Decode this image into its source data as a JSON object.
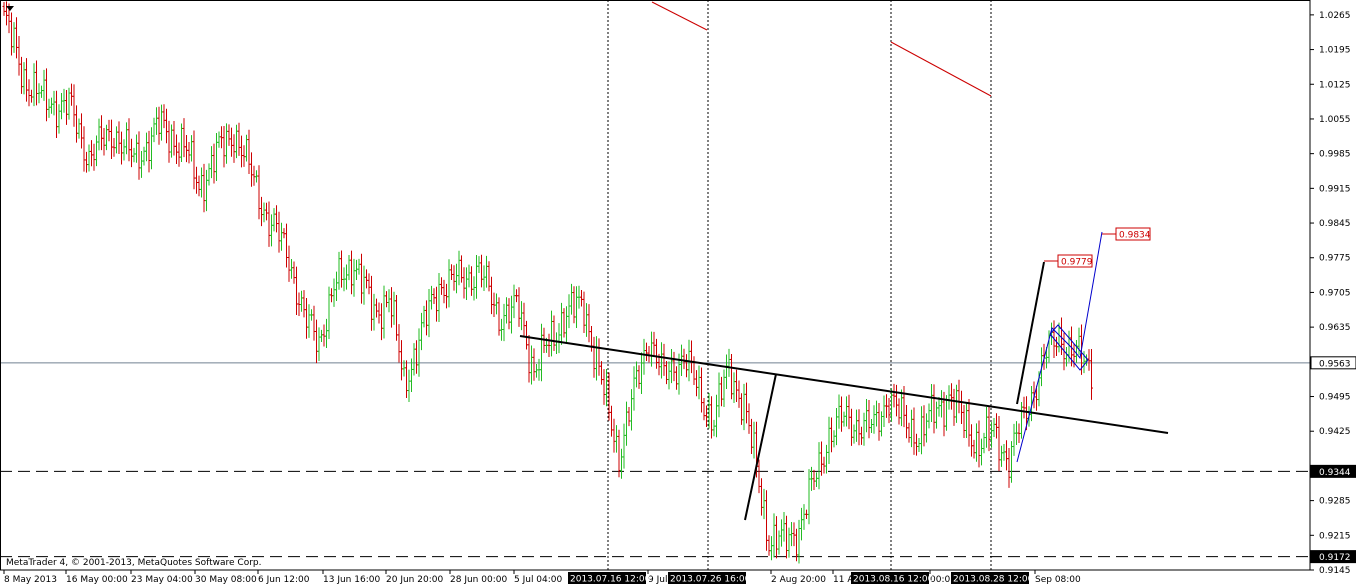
{
  "window": {
    "copyright": "MetaTrader 4, © 2001-2013, MetaQuotes Software Corp."
  },
  "chart_data": {
    "type": "bar",
    "symbol_style": "OHLC bars",
    "colors": {
      "bull": "#22bb22",
      "bear": "#cc0000",
      "trendline": "#000000",
      "forecast_black": "#000000",
      "forecast_blue": "#0000cc",
      "price_line": "#708090",
      "grid": "#000000",
      "label_red": "#cc0000"
    },
    "y_axis": {
      "range": [
        0.9145,
        1.0295
      ],
      "ticks": [
        "1.0265",
        "1.0195",
        "1.0125",
        "1.0055",
        "0.9985",
        "0.9915",
        "0.9845",
        "0.9775",
        "0.9705",
        "0.9635",
        "0.9495",
        "0.9425",
        "0.9285",
        "0.9215",
        "0.9145"
      ]
    },
    "x_axis": {
      "ticks": [
        "8 May 2013",
        "16 May 00:00",
        "23 May 04:00",
        "30 May 08:00",
        "6 Jun 12:00",
        "13 Jun 16:00",
        "20 Jun 20:00",
        "28 Jun 00:00",
        "5 Jul 04:00",
        "9 Jul",
        "2 Aug 20:00",
        "11 A",
        "00:0",
        "Sep 08:00"
      ],
      "highlighted": [
        "2013.07.16 12:00",
        "2013.07.26 16:00",
        "2013.08.16 12:00",
        "2013.08.28 12:00"
      ]
    },
    "current_price": "0.9563",
    "horizontal_levels": [
      "0.9344",
      "0.9172"
    ],
    "price_labels": [
      "0.9779",
      "0.9834"
    ],
    "series_path": [
      {
        "i": 0,
        "price": 1.026
      },
      {
        "i": 8,
        "price": 1.014
      },
      {
        "i": 16,
        "price": 1.009
      },
      {
        "i": 26,
        "price": 1.008
      },
      {
        "i": 34,
        "price": 0.998
      },
      {
        "i": 44,
        "price": 1.003
      },
      {
        "i": 52,
        "price": 0.997
      },
      {
        "i": 62,
        "price": 1.004
      },
      {
        "i": 72,
        "price": 1.0
      },
      {
        "i": 78,
        "price": 0.992
      },
      {
        "i": 86,
        "price": 0.999
      },
      {
        "i": 92,
        "price": 1.003
      },
      {
        "i": 100,
        "price": 0.993
      },
      {
        "i": 106,
        "price": 0.985
      },
      {
        "i": 114,
        "price": 0.978
      },
      {
        "i": 120,
        "price": 0.965
      },
      {
        "i": 126,
        "price": 0.961
      },
      {
        "i": 132,
        "price": 0.971
      },
      {
        "i": 140,
        "price": 0.977
      },
      {
        "i": 148,
        "price": 0.966
      },
      {
        "i": 154,
        "price": 0.97
      },
      {
        "i": 160,
        "price": 0.952
      },
      {
        "i": 166,
        "price": 0.961
      },
      {
        "i": 174,
        "price": 0.972
      },
      {
        "i": 182,
        "price": 0.973
      },
      {
        "i": 190,
        "price": 0.975
      },
      {
        "i": 198,
        "price": 0.966
      },
      {
        "i": 206,
        "price": 0.967
      },
      {
        "i": 212,
        "price": 0.955
      },
      {
        "i": 218,
        "price": 0.96
      },
      {
        "i": 224,
        "price": 0.966
      },
      {
        "i": 232,
        "price": 0.968
      },
      {
        "i": 240,
        "price": 0.95
      },
      {
        "i": 246,
        "price": 0.938
      },
      {
        "i": 252,
        "price": 0.95
      },
      {
        "i": 258,
        "price": 0.962
      },
      {
        "i": 264,
        "price": 0.953
      },
      {
        "i": 272,
        "price": 0.958
      },
      {
        "i": 278,
        "price": 0.95
      },
      {
        "i": 284,
        "price": 0.945
      },
      {
        "i": 290,
        "price": 0.955
      },
      {
        "i": 296,
        "price": 0.948
      },
      {
        "i": 302,
        "price": 0.932
      },
      {
        "i": 306,
        "price": 0.921
      },
      {
        "i": 312,
        "price": 0.92
      },
      {
        "i": 318,
        "price": 0.923
      },
      {
        "i": 324,
        "price": 0.932
      },
      {
        "i": 330,
        "price": 0.942
      },
      {
        "i": 336,
        "price": 0.945
      },
      {
        "i": 342,
        "price": 0.944
      },
      {
        "i": 348,
        "price": 0.943
      },
      {
        "i": 354,
        "price": 0.95
      },
      {
        "i": 360,
        "price": 0.944
      },
      {
        "i": 366,
        "price": 0.942
      },
      {
        "i": 372,
        "price": 0.946
      },
      {
        "i": 378,
        "price": 0.95
      },
      {
        "i": 384,
        "price": 0.944
      },
      {
        "i": 390,
        "price": 0.94
      },
      {
        "i": 396,
        "price": 0.942
      },
      {
        "i": 402,
        "price": 0.937
      },
      {
        "i": 410,
        "price": 0.948
      },
      {
        "i": 416,
        "price": 0.957
      },
      {
        "i": 422,
        "price": 0.962
      },
      {
        "i": 428,
        "price": 0.958
      },
      {
        "i": 434,
        "price": 0.956
      }
    ]
  }
}
